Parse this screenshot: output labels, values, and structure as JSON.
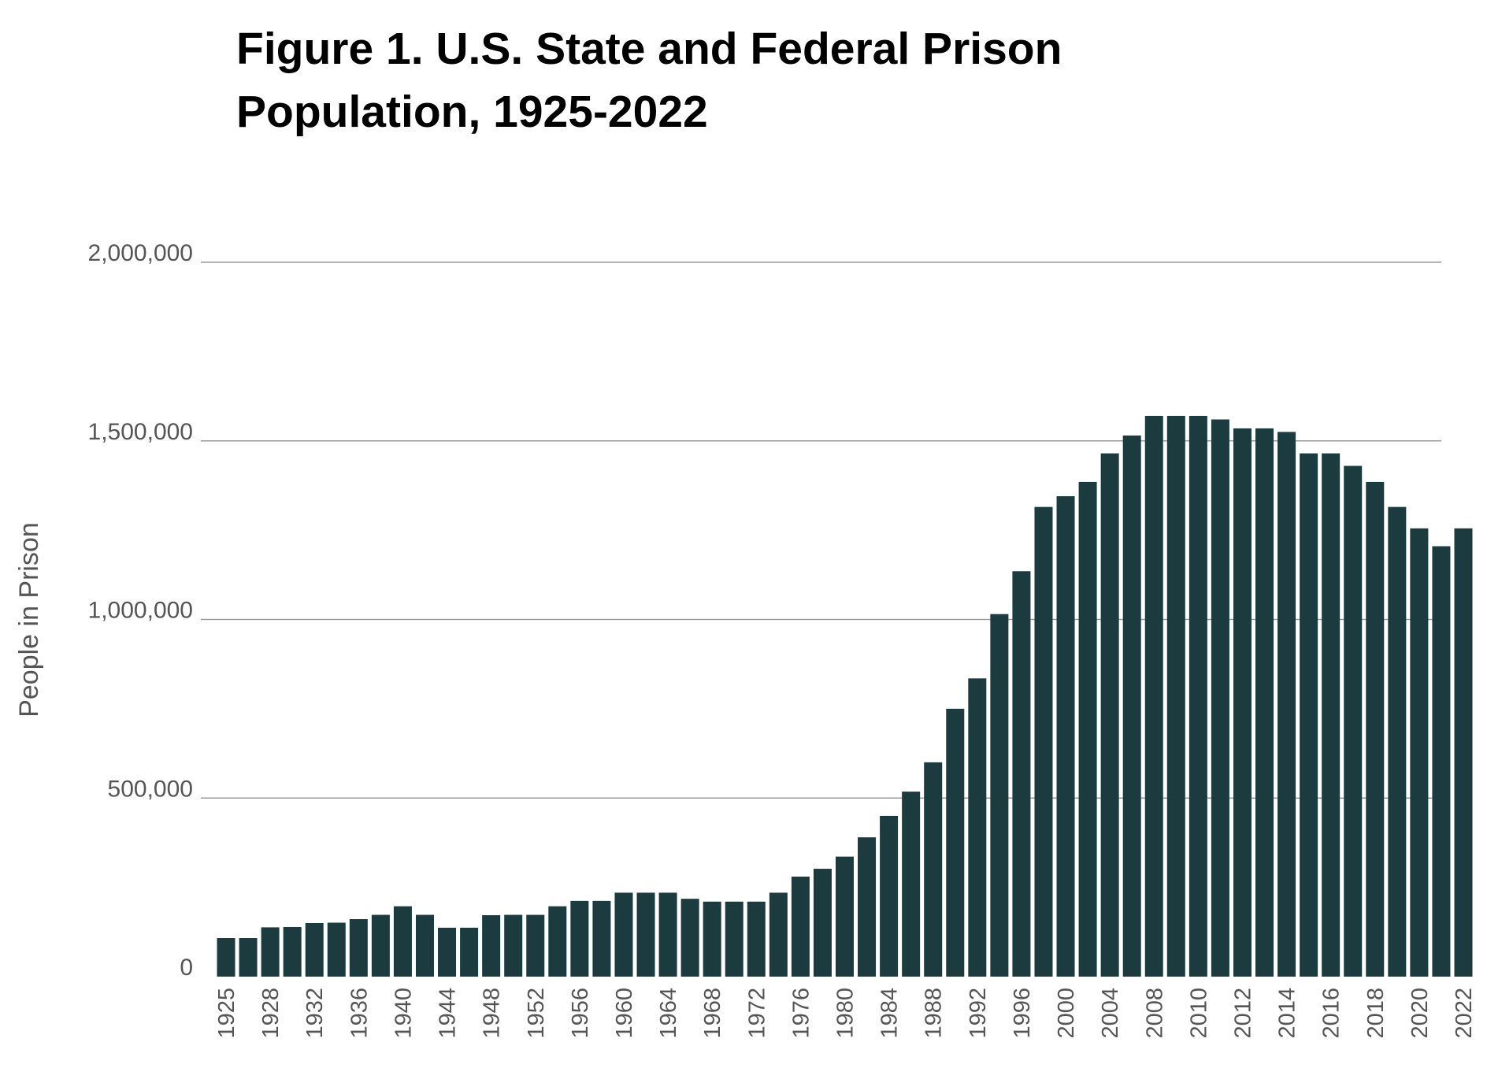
{
  "title_lines": [
    "Figure 1. U.S. State and Federal Prison",
    "Population, 1925-2022"
  ],
  "colors": {
    "bar": "#1b3b3f",
    "grid": "#9a9a9a",
    "tick_text": "#555555",
    "title": "#000000"
  },
  "chart_data": {
    "type": "bar",
    "title": "Figure 1. U.S. State and Federal Prison Population, 1925-2022",
    "xlabel": "",
    "ylabel": "People in Prison",
    "ylim": [
      0,
      2000000
    ],
    "yticks": [
      0,
      500000,
      1000000,
      1500000,
      2000000
    ],
    "ytick_labels": [
      "0",
      "500,000",
      "1,000,000",
      "1,500,000",
      "2,000,000"
    ],
    "grid": true,
    "legend": "none",
    "series": [
      {
        "name": "People in Prison",
        "categories": [
          1925,
          1926,
          1928,
          1930,
          1932,
          1934,
          1936,
          1938,
          1940,
          1942,
          1944,
          1946,
          1948,
          1950,
          1952,
          1954,
          1956,
          1958,
          1960,
          1962,
          1964,
          1966,
          1968,
          1970,
          1972,
          1974,
          1976,
          1978,
          1980,
          1982,
          1984,
          1986,
          1988,
          1990,
          1992,
          1994,
          1996,
          1998,
          2000,
          2002,
          2004,
          2006,
          2008,
          2009,
          2010,
          2011,
          2012,
          2013,
          2014,
          2015,
          2016,
          2017,
          2018,
          2019,
          2020,
          2021,
          2022
        ],
        "values": [
          108000,
          108000,
          138000,
          139000,
          150000,
          151000,
          161000,
          173000,
          197000,
          173000,
          137000,
          137000,
          172000,
          173000,
          173000,
          197000,
          212000,
          212000,
          235000,
          235000,
          235000,
          218000,
          210000,
          210000,
          210000,
          235000,
          280000,
          302000,
          336000,
          390000,
          450000,
          518000,
          600000,
          750000,
          835000,
          1015000,
          1135000,
          1315000,
          1345000,
          1385000,
          1465000,
          1515000,
          1570000,
          1570000,
          1570000,
          1560000,
          1535000,
          1535000,
          1525000,
          1465000,
          1465000,
          1430000,
          1385000,
          1315000,
          1255000,
          1205000,
          1255000
        ]
      }
    ],
    "x_tick_labels": [
      "1925",
      "1928",
      "1932",
      "1936",
      "1940",
      "1944",
      "1948",
      "1952",
      "1956",
      "1960",
      "1964",
      "1968",
      "1972",
      "1976",
      "1980",
      "1984",
      "1988",
      "1992",
      "1996",
      "2000",
      "2004",
      "2008",
      "2010",
      "2012",
      "2014",
      "2016",
      "2018",
      "2020",
      "2022"
    ]
  }
}
